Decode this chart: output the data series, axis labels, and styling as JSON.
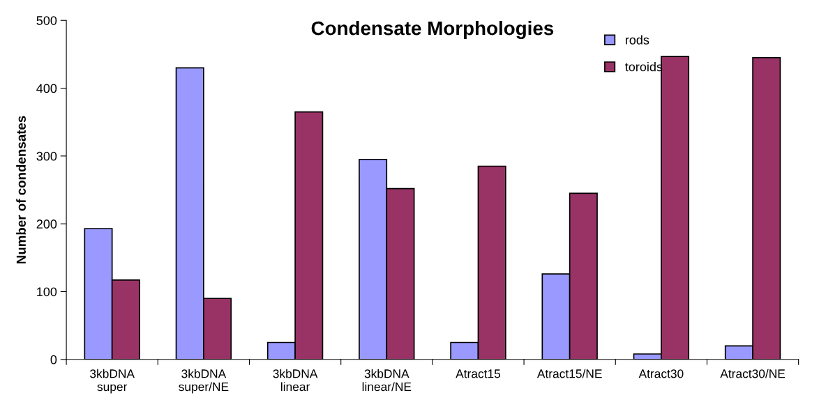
{
  "chart_data": {
    "type": "bar",
    "title": "Condensate Morphologies",
    "ylabel": "Number of condensates",
    "categories": [
      "3kbDNA\nsuper",
      "3kbDNA\nsuper/NE",
      "3kbDNA\nlinear",
      "3kbDNA\nlinear/NE",
      "Atract15",
      "Atract15/NE",
      "Atract30",
      "Atract30/NE"
    ],
    "series": [
      {
        "name": "rods",
        "color": "#9999ff",
        "values": [
          193,
          430,
          25,
          295,
          25,
          126,
          8,
          20
        ]
      },
      {
        "name": "toroids",
        "color": "#993366",
        "values": [
          117,
          90,
          365,
          252,
          285,
          245,
          447,
          445
        ]
      }
    ],
    "ylim": [
      0,
      500
    ],
    "yticks": [
      0,
      100,
      200,
      300,
      400,
      500
    ],
    "grid": false,
    "legend": "top right"
  }
}
